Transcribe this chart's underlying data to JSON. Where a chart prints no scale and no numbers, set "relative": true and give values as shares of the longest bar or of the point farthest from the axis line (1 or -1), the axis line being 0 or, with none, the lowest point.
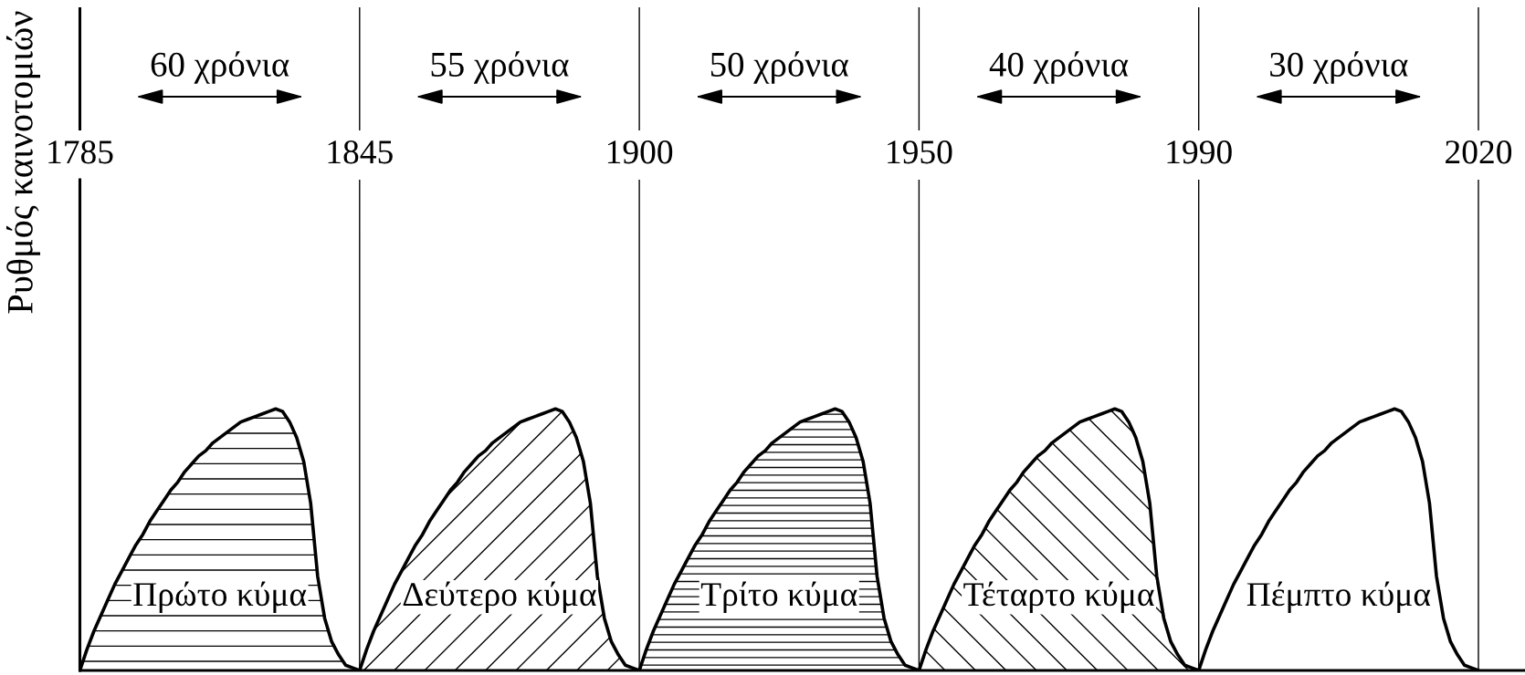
{
  "chart_data": {
    "type": "area",
    "ylabel": "Ρυθμός καινοτομιών",
    "relative": true,
    "grid": "x",
    "categories": [
      "1785",
      null,
      null,
      null,
      null,
      null,
      null,
      null,
      null,
      null,
      null,
      null,
      null,
      null,
      null,
      null,
      null,
      null,
      null,
      null,
      null,
      null,
      null,
      null,
      null,
      null,
      null,
      null,
      null,
      null,
      null,
      null,
      null,
      null,
      null,
      null,
      null,
      null,
      null,
      null,
      "1845",
      null,
      null,
      null,
      null,
      null,
      null,
      null,
      null,
      null,
      null,
      null,
      null,
      null,
      null,
      null,
      null,
      null,
      null,
      null,
      null,
      null,
      null,
      null,
      null,
      null,
      null,
      null,
      null,
      null,
      null,
      null,
      null,
      null,
      null,
      null,
      null,
      null,
      null,
      null,
      "1900",
      null,
      null,
      null,
      null,
      null,
      null,
      null,
      null,
      null,
      null,
      null,
      null,
      null,
      null,
      null,
      null,
      null,
      null,
      null,
      null,
      null,
      null,
      null,
      null,
      null,
      null,
      null,
      null,
      null,
      null,
      null,
      null,
      null,
      null,
      null,
      null,
      null,
      null,
      null,
      "1950",
      null,
      null,
      null,
      null,
      null,
      null,
      null,
      null,
      null,
      null,
      null,
      null,
      null,
      null,
      null,
      null,
      null,
      null,
      null,
      null,
      null,
      null,
      null,
      null,
      null,
      null,
      null,
      null,
      null,
      null,
      null,
      null,
      null,
      null,
      null,
      null,
      null,
      null,
      null,
      "1990",
      null,
      null,
      null,
      null,
      null,
      null,
      null,
      null,
      null,
      null,
      null,
      null,
      null,
      null,
      null,
      null,
      null,
      null,
      null,
      null,
      null,
      null,
      null,
      null,
      null,
      null,
      null,
      null,
      null,
      null,
      null,
      null,
      null,
      null,
      null,
      null,
      null,
      null,
      null,
      "2020"
    ],
    "annotations": [
      "60 χρόνια",
      "55 χρόνια",
      "50 χρόνια",
      "40 χρόνια",
      "30 χρόνια"
    ],
    "series": [
      {
        "name": "Πρώτο κύμα",
        "color": "#000000",
        "values": [
          0,
          0.08,
          0.15,
          0.21,
          0.27,
          0.33,
          0.38,
          0.43,
          0.48,
          0.52,
          0.57,
          0.61,
          0.65,
          0.69,
          0.72,
          0.76,
          0.79,
          0.82,
          0.84,
          0.87,
          0.89,
          0.91,
          0.93,
          0.95,
          0.96,
          0.97,
          0.98,
          0.99,
          1,
          0.99,
          0.95,
          0.89,
          0.8,
          0.64,
          0.36,
          0.2,
          0.11,
          0.06,
          0.02,
          0.01,
          0,
          null,
          null,
          null,
          null,
          null,
          null,
          null,
          null,
          null,
          null,
          null,
          null,
          null,
          null,
          null,
          null,
          null,
          null,
          null,
          null,
          null,
          null,
          null,
          null,
          null,
          null,
          null,
          null,
          null,
          null,
          null,
          null,
          null,
          null,
          null,
          null,
          null,
          null,
          null,
          null,
          null,
          null,
          null,
          null,
          null,
          null,
          null,
          null,
          null,
          null,
          null,
          null,
          null,
          null,
          null,
          null,
          null,
          null,
          null,
          null,
          null,
          null,
          null,
          null,
          null,
          null,
          null,
          null,
          null,
          null,
          null,
          null,
          null,
          null,
          null,
          null,
          null,
          null,
          null,
          null,
          null,
          null,
          null,
          null,
          null,
          null,
          null,
          null,
          null,
          null,
          null,
          null,
          null,
          null,
          null,
          null,
          null,
          null,
          null,
          null,
          null,
          null,
          null,
          null,
          null,
          null,
          null,
          null,
          null,
          null,
          null,
          null,
          null,
          null,
          null,
          null,
          null,
          null,
          null,
          null,
          null,
          null,
          null,
          null,
          null,
          null,
          null,
          null,
          null,
          null,
          null,
          null,
          null,
          null,
          null,
          null,
          null,
          null,
          null,
          null,
          null,
          null,
          null,
          null,
          null,
          null,
          null,
          null,
          null,
          null,
          null,
          null,
          null,
          null,
          null,
          null,
          null,
          null,
          null,
          null
        ]
      },
      {
        "name": "Δεύτερο κύμα",
        "color": "#000000",
        "values": [
          null,
          null,
          null,
          null,
          null,
          null,
          null,
          null,
          null,
          null,
          null,
          null,
          null,
          null,
          null,
          null,
          null,
          null,
          null,
          null,
          null,
          null,
          null,
          null,
          null,
          null,
          null,
          null,
          null,
          null,
          null,
          null,
          null,
          null,
          null,
          null,
          null,
          null,
          null,
          null,
          0,
          0.08,
          0.15,
          0.21,
          0.27,
          0.33,
          0.38,
          0.43,
          0.48,
          0.52,
          0.57,
          0.61,
          0.65,
          0.69,
          0.72,
          0.76,
          0.79,
          0.82,
          0.84,
          0.87,
          0.89,
          0.91,
          0.93,
          0.95,
          0.96,
          0.97,
          0.98,
          0.99,
          1,
          0.99,
          0.95,
          0.89,
          0.8,
          0.64,
          0.36,
          0.2,
          0.11,
          0.06,
          0.02,
          0.01,
          0,
          null,
          null,
          null,
          null,
          null,
          null,
          null,
          null,
          null,
          null,
          null,
          null,
          null,
          null,
          null,
          null,
          null,
          null,
          null,
          null,
          null,
          null,
          null,
          null,
          null,
          null,
          null,
          null,
          null,
          null,
          null,
          null,
          null,
          null,
          null,
          null,
          null,
          null,
          null,
          null,
          null,
          null,
          null,
          null,
          null,
          null,
          null,
          null,
          null,
          null,
          null,
          null,
          null,
          null,
          null,
          null,
          null,
          null,
          null,
          null,
          null,
          null,
          null,
          null,
          null,
          null,
          null,
          null,
          null,
          null,
          null,
          null,
          null,
          null,
          null,
          null,
          null,
          null,
          null,
          null,
          null,
          null,
          null,
          null,
          null,
          null,
          null,
          null,
          null,
          null,
          null,
          null,
          null,
          null,
          null,
          null,
          null,
          null,
          null,
          null,
          null,
          null,
          null,
          null,
          null,
          null,
          null,
          null,
          null,
          null,
          null,
          null,
          null,
          null,
          null,
          null,
          null,
          null,
          null,
          null
        ]
      },
      {
        "name": "Τρίτο κύμα",
        "color": "#000000",
        "values": [
          null,
          null,
          null,
          null,
          null,
          null,
          null,
          null,
          null,
          null,
          null,
          null,
          null,
          null,
          null,
          null,
          null,
          null,
          null,
          null,
          null,
          null,
          null,
          null,
          null,
          null,
          null,
          null,
          null,
          null,
          null,
          null,
          null,
          null,
          null,
          null,
          null,
          null,
          null,
          null,
          null,
          null,
          null,
          null,
          null,
          null,
          null,
          null,
          null,
          null,
          null,
          null,
          null,
          null,
          null,
          null,
          null,
          null,
          null,
          null,
          null,
          null,
          null,
          null,
          null,
          null,
          null,
          null,
          null,
          null,
          null,
          null,
          null,
          null,
          null,
          null,
          null,
          null,
          null,
          null,
          0,
          0.08,
          0.15,
          0.21,
          0.27,
          0.33,
          0.38,
          0.43,
          0.48,
          0.52,
          0.57,
          0.61,
          0.65,
          0.69,
          0.72,
          0.76,
          0.79,
          0.82,
          0.84,
          0.87,
          0.89,
          0.91,
          0.93,
          0.95,
          0.96,
          0.97,
          0.98,
          0.99,
          1,
          0.99,
          0.95,
          0.89,
          0.8,
          0.64,
          0.36,
          0.2,
          0.11,
          0.06,
          0.02,
          0.01,
          0,
          null,
          null,
          null,
          null,
          null,
          null,
          null,
          null,
          null,
          null,
          null,
          null,
          null,
          null,
          null,
          null,
          null,
          null,
          null,
          null,
          null,
          null,
          null,
          null,
          null,
          null,
          null,
          null,
          null,
          null,
          null,
          null,
          null,
          null,
          null,
          null,
          null,
          null,
          null,
          null,
          null,
          null,
          null,
          null,
          null,
          null,
          null,
          null,
          null,
          null,
          null,
          null,
          null,
          null,
          null,
          null,
          null,
          null,
          null,
          null,
          null,
          null,
          null,
          null,
          null,
          null,
          null,
          null,
          null,
          null,
          null,
          null,
          null,
          null,
          null,
          null,
          null,
          null,
          null,
          null
        ]
      },
      {
        "name": "Τέταρτο κύμα",
        "color": "#000000",
        "values": [
          null,
          null,
          null,
          null,
          null,
          null,
          null,
          null,
          null,
          null,
          null,
          null,
          null,
          null,
          null,
          null,
          null,
          null,
          null,
          null,
          null,
          null,
          null,
          null,
          null,
          null,
          null,
          null,
          null,
          null,
          null,
          null,
          null,
          null,
          null,
          null,
          null,
          null,
          null,
          null,
          null,
          null,
          null,
          null,
          null,
          null,
          null,
          null,
          null,
          null,
          null,
          null,
          null,
          null,
          null,
          null,
          null,
          null,
          null,
          null,
          null,
          null,
          null,
          null,
          null,
          null,
          null,
          null,
          null,
          null,
          null,
          null,
          null,
          null,
          null,
          null,
          null,
          null,
          null,
          null,
          null,
          null,
          null,
          null,
          null,
          null,
          null,
          null,
          null,
          null,
          null,
          null,
          null,
          null,
          null,
          null,
          null,
          null,
          null,
          null,
          null,
          null,
          null,
          null,
          null,
          null,
          null,
          null,
          null,
          null,
          null,
          null,
          null,
          null,
          null,
          null,
          null,
          null,
          null,
          null,
          0,
          0.08,
          0.15,
          0.21,
          0.27,
          0.33,
          0.38,
          0.43,
          0.48,
          0.52,
          0.57,
          0.61,
          0.65,
          0.69,
          0.72,
          0.76,
          0.79,
          0.82,
          0.84,
          0.87,
          0.89,
          0.91,
          0.93,
          0.95,
          0.96,
          0.97,
          0.98,
          0.99,
          1,
          0.99,
          0.95,
          0.89,
          0.8,
          0.64,
          0.36,
          0.2,
          0.11,
          0.06,
          0.02,
          0.01,
          0,
          null,
          null,
          null,
          null,
          null,
          null,
          null,
          null,
          null,
          null,
          null,
          null,
          null,
          null,
          null,
          null,
          null,
          null,
          null,
          null,
          null,
          null,
          null,
          null,
          null,
          null,
          null,
          null,
          null,
          null,
          null,
          null,
          null,
          null,
          null,
          null,
          null,
          null,
          null,
          null
        ]
      },
      {
        "name": "Πέμπτο κύμα",
        "color": "#000000",
        "values": [
          null,
          null,
          null,
          null,
          null,
          null,
          null,
          null,
          null,
          null,
          null,
          null,
          null,
          null,
          null,
          null,
          null,
          null,
          null,
          null,
          null,
          null,
          null,
          null,
          null,
          null,
          null,
          null,
          null,
          null,
          null,
          null,
          null,
          null,
          null,
          null,
          null,
          null,
          null,
          null,
          null,
          null,
          null,
          null,
          null,
          null,
          null,
          null,
          null,
          null,
          null,
          null,
          null,
          null,
          null,
          null,
          null,
          null,
          null,
          null,
          null,
          null,
          null,
          null,
          null,
          null,
          null,
          null,
          null,
          null,
          null,
          null,
          null,
          null,
          null,
          null,
          null,
          null,
          null,
          null,
          null,
          null,
          null,
          null,
          null,
          null,
          null,
          null,
          null,
          null,
          null,
          null,
          null,
          null,
          null,
          null,
          null,
          null,
          null,
          null,
          null,
          null,
          null,
          null,
          null,
          null,
          null,
          null,
          null,
          null,
          null,
          null,
          null,
          null,
          null,
          null,
          null,
          null,
          null,
          null,
          null,
          null,
          null,
          null,
          null,
          null,
          null,
          null,
          null,
          null,
          null,
          null,
          null,
          null,
          null,
          null,
          null,
          null,
          null,
          null,
          null,
          null,
          null,
          null,
          null,
          null,
          null,
          null,
          null,
          null,
          null,
          null,
          null,
          null,
          null,
          null,
          null,
          null,
          null,
          null,
          0,
          0.08,
          0.15,
          0.21,
          0.27,
          0.33,
          0.38,
          0.43,
          0.48,
          0.52,
          0.57,
          0.61,
          0.65,
          0.69,
          0.72,
          0.76,
          0.79,
          0.82,
          0.84,
          0.87,
          0.89,
          0.91,
          0.93,
          0.95,
          0.96,
          0.97,
          0.98,
          0.99,
          1,
          0.99,
          0.95,
          0.89,
          0.8,
          0.64,
          0.36,
          0.2,
          0.11,
          0.06,
          0.02,
          0.01,
          0
        ]
      }
    ]
  }
}
